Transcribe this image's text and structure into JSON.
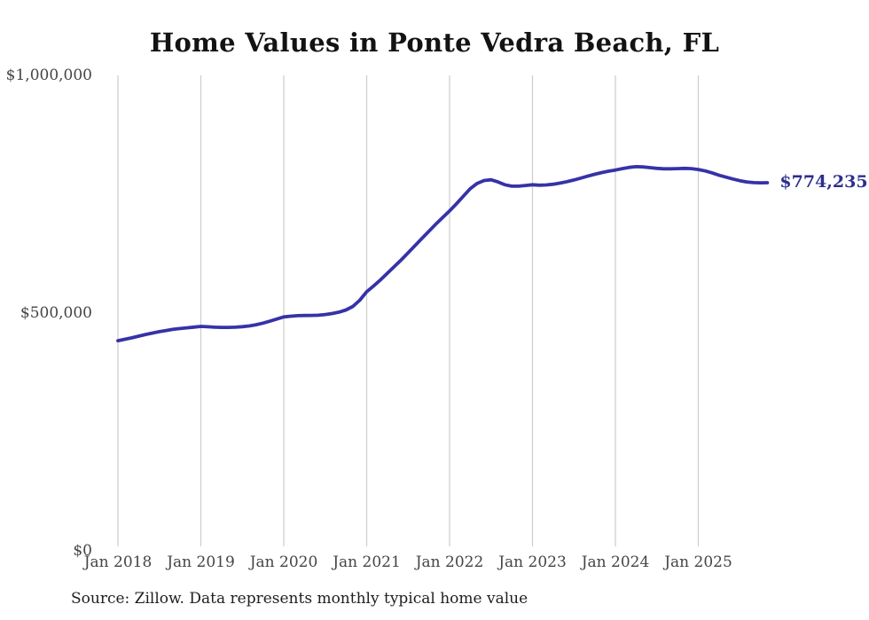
{
  "title": "Home Values in Ponte Vedra Beach, FL",
  "source_note": "Source: Zillow. Data represents monthly typical home value",
  "colors": {
    "line": "#3632a8",
    "end_label": "#2c2f8d",
    "gridline": "#cccccc",
    "title": "#131313",
    "tick_text": "#454545"
  },
  "chart_data": {
    "type": "line",
    "title": "Home Values in Ponte Vedra Beach, FL",
    "series_name": "Monthly typical home value",
    "unit": "USD",
    "ylim": [
      0,
      1000000
    ],
    "grid": "vertical gridlines at each January, no horizontal gridlines",
    "legend": "none",
    "end_label": "$774,235",
    "end_value": 774235,
    "y_ticks": [
      {
        "label": "$0",
        "value": 0
      },
      {
        "label": "$500,000",
        "value": 500000
      },
      {
        "label": "$1,000,000",
        "value": 1000000
      }
    ],
    "x_ticks": [
      "Jan 2018",
      "Jan 2019",
      "Jan 2020",
      "Jan 2021",
      "Jan 2022",
      "Jan 2023",
      "Jan 2024",
      "Jan 2025"
    ],
    "months": [
      "2018-01",
      "2018-02",
      "2018-03",
      "2018-04",
      "2018-05",
      "2018-06",
      "2018-07",
      "2018-08",
      "2018-09",
      "2018-10",
      "2018-11",
      "2018-12",
      "2019-01",
      "2019-02",
      "2019-03",
      "2019-04",
      "2019-05",
      "2019-06",
      "2019-07",
      "2019-08",
      "2019-09",
      "2019-10",
      "2019-11",
      "2019-12",
      "2020-01",
      "2020-02",
      "2020-03",
      "2020-04",
      "2020-05",
      "2020-06",
      "2020-07",
      "2020-08",
      "2020-09",
      "2020-10",
      "2020-11",
      "2020-12",
      "2021-01",
      "2021-02",
      "2021-03",
      "2021-04",
      "2021-05",
      "2021-06",
      "2021-07",
      "2021-08",
      "2021-09",
      "2021-10",
      "2021-11",
      "2021-12",
      "2022-01",
      "2022-02",
      "2022-03",
      "2022-04",
      "2022-05",
      "2022-06",
      "2022-07",
      "2022-08",
      "2022-09",
      "2022-10",
      "2022-11",
      "2022-12",
      "2023-01",
      "2023-02",
      "2023-03",
      "2023-04",
      "2023-05",
      "2023-06",
      "2023-07",
      "2023-08",
      "2023-09",
      "2023-10",
      "2023-11",
      "2023-12",
      "2024-01",
      "2024-02",
      "2024-03",
      "2024-04",
      "2024-05",
      "2024-06",
      "2024-07",
      "2024-08",
      "2024-09",
      "2024-10",
      "2024-11",
      "2024-12",
      "2025-01",
      "2025-02",
      "2025-03",
      "2025-04",
      "2025-05",
      "2025-06",
      "2025-07",
      "2025-08",
      "2025-09",
      "2025-10",
      "2025-11"
    ],
    "values": [
      442000,
      445000,
      448000,
      451500,
      455000,
      458000,
      461000,
      463500,
      465800,
      467500,
      469000,
      470500,
      472000,
      471300,
      470400,
      470000,
      469900,
      470400,
      471500,
      473000,
      475500,
      479000,
      483000,
      487500,
      492000,
      493500,
      494600,
      495000,
      495100,
      495600,
      497000,
      499000,
      502000,
      506500,
      514000,
      527000,
      545000,
      557000,
      570000,
      584000,
      598000,
      612000,
      627000,
      642000,
      657000,
      672000,
      687000,
      701000,
      715000,
      730000,
      746000,
      762000,
      773000,
      779000,
      780500,
      776000,
      770000,
      767000,
      767000,
      768500,
      770000,
      769000,
      769500,
      771000,
      773500,
      776500,
      780000,
      784000,
      788000,
      792000,
      795500,
      798500,
      801000,
      804000,
      806500,
      808000,
      807500,
      806000,
      804500,
      803500,
      803500,
      804000,
      804500,
      804000,
      802000,
      799000,
      795000,
      790000,
      786000,
      782000,
      778500,
      776000,
      774500,
      774000,
      774235
    ]
  }
}
